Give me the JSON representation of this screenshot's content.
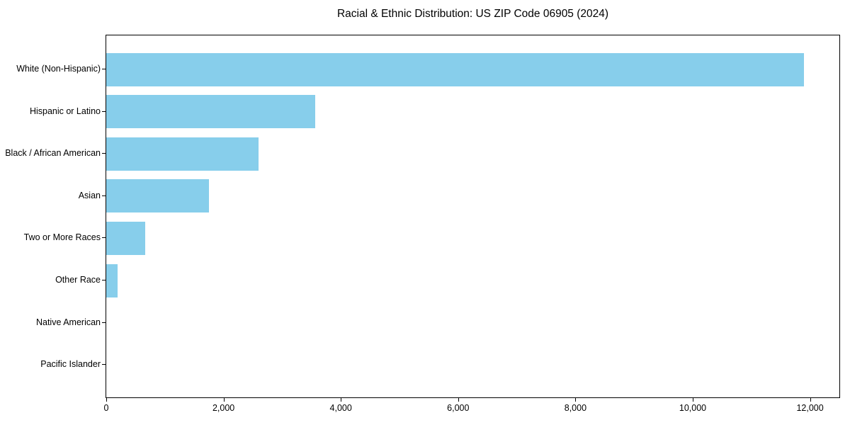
{
  "figure": {
    "background_color": "#FFFFFF",
    "axis_color": "#000000"
  },
  "chart_data": {
    "type": "bar",
    "orientation": "horizontal",
    "title": "Racial & Ethnic Distribution: US ZIP Code 06905 (2024)",
    "xlabel": "",
    "ylabel": "",
    "categories": [
      "White (Non-Hispanic)",
      "Hispanic or Latino",
      "Black / African American",
      "Asian",
      "Two or More Races",
      "Other Race",
      "Native American",
      "Pacific Islander"
    ],
    "values": [
      11900,
      3560,
      2600,
      1750,
      660,
      190,
      0,
      0
    ],
    "bar_color": "#87CEEB",
    "xlim": [
      0,
      12500
    ],
    "xticks": [
      0,
      2000,
      4000,
      6000,
      8000,
      10000,
      12000
    ],
    "xtick_labels": [
      "0",
      "2,000",
      "4,000",
      "6,000",
      "8,000",
      "10,000",
      "12,000"
    ],
    "grid": false,
    "legend": false
  }
}
